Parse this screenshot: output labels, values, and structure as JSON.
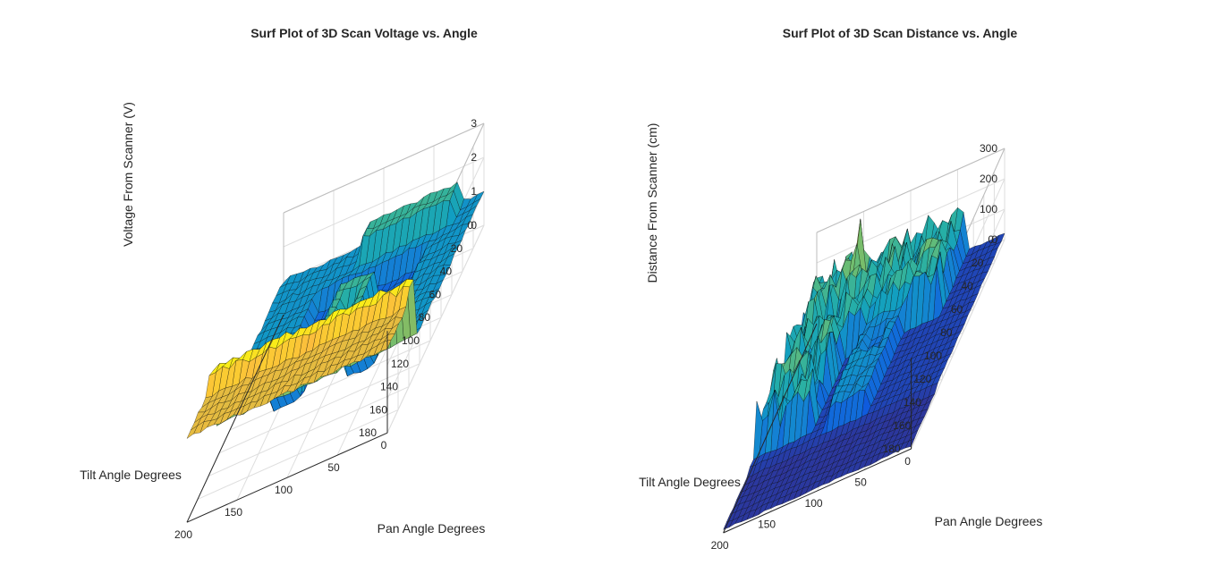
{
  "chart_data": [
    {
      "type": "surface",
      "title": "Surf Plot of 3D Scan Voltage vs. Angle",
      "xlabel": "Pan Angle Degrees",
      "ylabel": "Tilt Angle Degrees",
      "zlabel": "Voltage From Scanner (V)",
      "xlim": [
        0,
        200
      ],
      "ylim": [
        0,
        180
      ],
      "zlim": [
        0,
        3
      ],
      "xticks": [
        "0",
        "50",
        "100",
        "150",
        "200"
      ],
      "yticks": [
        "0",
        "20",
        "40",
        "60",
        "80",
        "100",
        "120",
        "140",
        "160",
        "180"
      ],
      "zticks": [
        "0",
        "1",
        "2",
        "3"
      ],
      "grid": true,
      "colormap": "parula",
      "summary": {
        "background_level": 1.0,
        "lower_arch_region_level": 0.5,
        "raised_letter_shape_level": 1.6,
        "bottom_strip_level": 2.8,
        "top_ridge_level": 1.6
      }
    },
    {
      "type": "surface",
      "title": "Surf Plot of 3D Scan Distance vs. Angle",
      "xlabel": "Pan Angle Degrees",
      "ylabel": "Tilt Angle Degrees",
      "zlabel": "Distance From Scanner (cm)",
      "xlim": [
        0,
        200
      ],
      "ylim": [
        0,
        180
      ],
      "zlim": [
        0,
        300
      ],
      "xticks": [
        "0",
        "50",
        "100",
        "150",
        "200"
      ],
      "yticks": [
        "0",
        "20",
        "40",
        "60",
        "80",
        "100",
        "120",
        "140",
        "160",
        "180"
      ],
      "zticks": [
        "0",
        "100",
        "200",
        "300"
      ],
      "grid": true,
      "colormap": "parula",
      "summary": {
        "background_level": 20,
        "letter_shape_level": 90,
        "far_region_level": 180,
        "max_spike": 300
      }
    }
  ]
}
